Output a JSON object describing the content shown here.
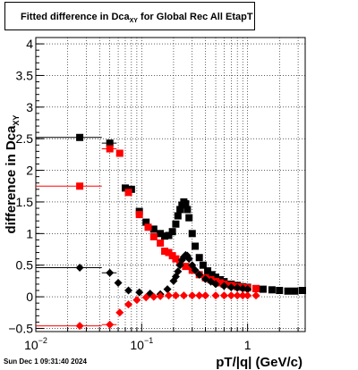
{
  "title": {
    "main": "Fitted difference in Dca",
    "sub": "XY",
    "rest": " for Global Rec All EtapT"
  },
  "timestamp": "Sun Dec  1 09:31:40 2024",
  "chart_data": {
    "type": "scatter",
    "title": "Fitted difference in Dca_XY for Global Rec All EtapT",
    "xlabel": "pT/|q| (GeV/c)",
    "ylabel": "difference in Dca_XY",
    "ylabel_main": "difference in Dca",
    "ylabel_sub": "XY",
    "xscale": "log",
    "xlim": [
      0.01,
      3.5
    ],
    "ylim": [
      -0.55,
      4.1
    ],
    "grid": true,
    "x_ticks": [
      {
        "value": 0.01,
        "base": "10",
        "exp": "−2"
      },
      {
        "value": 0.1,
        "base": "10",
        "exp": "−1"
      },
      {
        "value": 1,
        "base": "1",
        "exp": ""
      }
    ],
    "y_ticks": [
      {
        "value": -0.5,
        "label": "−0.5"
      },
      {
        "value": 0,
        "label": "0"
      },
      {
        "value": 0.5,
        "label": "0.5"
      },
      {
        "value": 1,
        "label": "1"
      },
      {
        "value": 1.5,
        "label": "1.5"
      },
      {
        "value": 2,
        "label": "2"
      },
      {
        "value": 2.5,
        "label": "2.5"
      },
      {
        "value": 3,
        "label": "3"
      },
      {
        "value": 3.5,
        "label": "3.5"
      },
      {
        "value": 4,
        "label": "4"
      }
    ],
    "series": [
      {
        "marker": "square",
        "color": "#000000",
        "x": [
          0.026,
          0.05,
          0.07,
          0.08,
          0.095,
          0.11,
          0.13,
          0.15,
          0.165,
          0.18,
          0.195,
          0.21,
          0.22,
          0.23,
          0.24,
          0.25,
          0.26,
          0.27,
          0.28,
          0.3,
          0.32,
          0.35,
          0.38,
          0.42,
          0.46,
          0.5,
          0.55,
          0.6,
          0.7,
          0.8,
          0.9,
          1.0,
          1.2,
          1.4,
          1.7,
          2.0,
          2.4,
          2.8,
          3.3
        ],
        "y": [
          2.52,
          2.43,
          1.72,
          1.7,
          1.35,
          1.18,
          1.07,
          1.0,
          0.96,
          0.97,
          1.03,
          1.15,
          1.28,
          1.38,
          1.45,
          1.5,
          1.47,
          1.38,
          1.25,
          1.0,
          0.8,
          0.62,
          0.5,
          0.41,
          0.35,
          0.31,
          0.27,
          0.24,
          0.2,
          0.18,
          0.16,
          0.15,
          0.13,
          0.12,
          0.11,
          0.1,
          0.09,
          0.09,
          0.1
        ]
      },
      {
        "marker": "square",
        "color": "#ff0000",
        "x": [
          0.026,
          0.05,
          0.062,
          0.075,
          0.095,
          0.115,
          0.13,
          0.15,
          0.165,
          0.18,
          0.195,
          0.21,
          0.23,
          0.26,
          0.3,
          0.35,
          0.4,
          0.45,
          0.5,
          0.55,
          0.6,
          0.7,
          0.8,
          0.9,
          1.0,
          1.2
        ],
        "y": [
          1.75,
          2.34,
          2.27,
          1.65,
          1.3,
          1.1,
          0.95,
          0.85,
          0.72,
          0.7,
          0.65,
          0.6,
          0.54,
          0.48,
          0.42,
          0.35,
          0.3,
          0.27,
          0.24,
          0.22,
          0.2,
          0.18,
          0.16,
          0.15,
          0.14,
          0.13
        ]
      },
      {
        "marker": "diamond",
        "color": "#000000",
        "x": [
          0.026,
          0.05,
          0.06,
          0.075,
          0.095,
          0.12,
          0.15,
          0.175,
          0.2,
          0.21,
          0.22,
          0.23,
          0.24,
          0.25,
          0.26,
          0.27,
          0.28,
          0.3,
          0.32,
          0.35,
          0.4,
          0.45,
          0.5,
          0.6,
          0.7,
          0.8,
          0.9,
          1.0
        ],
        "y": [
          0.46,
          0.38,
          0.22,
          0.1,
          0.07,
          0.05,
          0.04,
          0.12,
          0.25,
          0.32,
          0.4,
          0.5,
          0.58,
          0.63,
          0.66,
          0.65,
          0.6,
          0.5,
          0.42,
          0.35,
          0.28,
          0.24,
          0.2,
          0.17,
          0.15,
          0.14,
          0.13,
          0.12
        ]
      },
      {
        "marker": "diamond",
        "color": "#ff0000",
        "x": [
          0.026,
          0.05,
          0.062,
          0.075,
          0.09,
          0.11,
          0.13,
          0.15,
          0.18,
          0.21,
          0.25,
          0.3,
          0.35,
          0.4,
          0.5,
          0.6,
          0.7,
          0.8,
          0.9,
          1.0,
          1.2
        ],
        "y": [
          -0.46,
          -0.44,
          -0.25,
          -0.12,
          -0.05,
          -0.01,
          0.0,
          0.01,
          0.02,
          0.02,
          0.02,
          0.02,
          0.02,
          0.02,
          0.02,
          0.02,
          0.02,
          0.02,
          0.02,
          0.02,
          0.02
        ]
      }
    ],
    "error_bars": [
      {
        "series": 0,
        "x": 0.026,
        "x_low": 0.01,
        "x_high": 0.042
      },
      {
        "series": 1,
        "x": 0.026,
        "x_low": 0.01,
        "x_high": 0.042
      },
      {
        "series": 2,
        "x": 0.026,
        "x_low": 0.01,
        "x_high": 0.042
      },
      {
        "series": 3,
        "x": 0.026,
        "x_low": 0.01,
        "x_high": 0.042
      },
      {
        "series": 0,
        "x": 0.05,
        "x_low": 0.042,
        "x_high": 0.058
      },
      {
        "series": 1,
        "x": 0.05,
        "x_low": 0.042,
        "x_high": 0.058
      },
      {
        "series": 2,
        "x": 0.05,
        "x_low": 0.042,
        "x_high": 0.058
      },
      {
        "series": 3,
        "x": 0.05,
        "x_low": 0.042,
        "x_high": 0.058
      }
    ]
  }
}
